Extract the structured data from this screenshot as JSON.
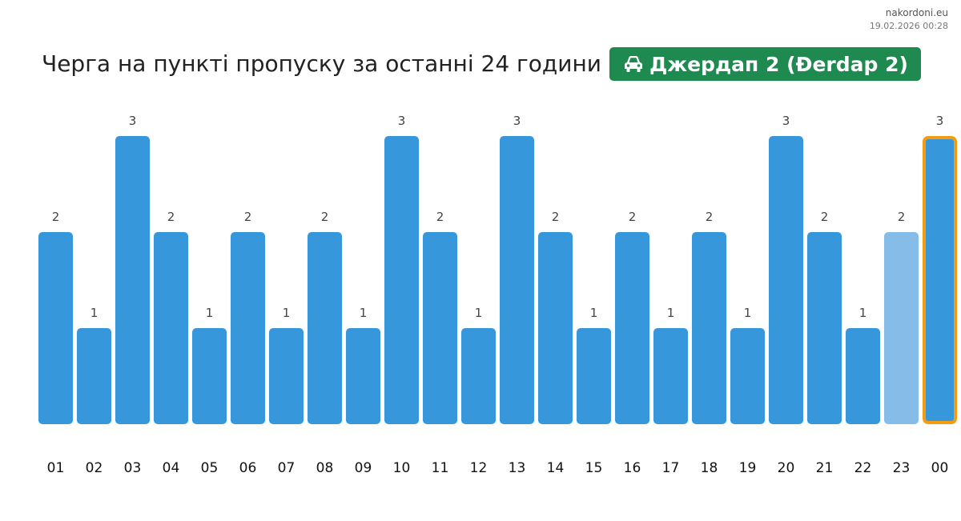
{
  "header": {
    "site": "nakordoni.eu",
    "timestamp": "19.02.2026 00:28",
    "title": "Черга на пункті пропуску за останні 24 години",
    "checkpoint_name": "Джердап 2 (Đerdap 2)",
    "checkpoint_icon": "car-icon",
    "badge_color": "#1f8a50"
  },
  "chart_data": {
    "type": "bar",
    "title": "Черга на пункті пропуску за останні 24 години",
    "xlabel": "",
    "ylabel": "",
    "ylim": [
      0,
      3
    ],
    "grid": false,
    "categories": [
      "01",
      "02",
      "03",
      "04",
      "05",
      "06",
      "07",
      "08",
      "09",
      "10",
      "11",
      "12",
      "13",
      "14",
      "15",
      "16",
      "17",
      "18",
      "19",
      "20",
      "21",
      "22",
      "23",
      "00"
    ],
    "values": [
      2,
      1,
      3,
      2,
      1,
      2,
      1,
      2,
      1,
      3,
      2,
      1,
      3,
      2,
      1,
      2,
      1,
      2,
      1,
      3,
      2,
      1,
      2,
      3
    ],
    "bar_color": "#3797db",
    "light_bar_index": 22,
    "light_bar_color": "#85bde8",
    "highlight_index": 23,
    "highlight_border_color": "#f39c12"
  }
}
